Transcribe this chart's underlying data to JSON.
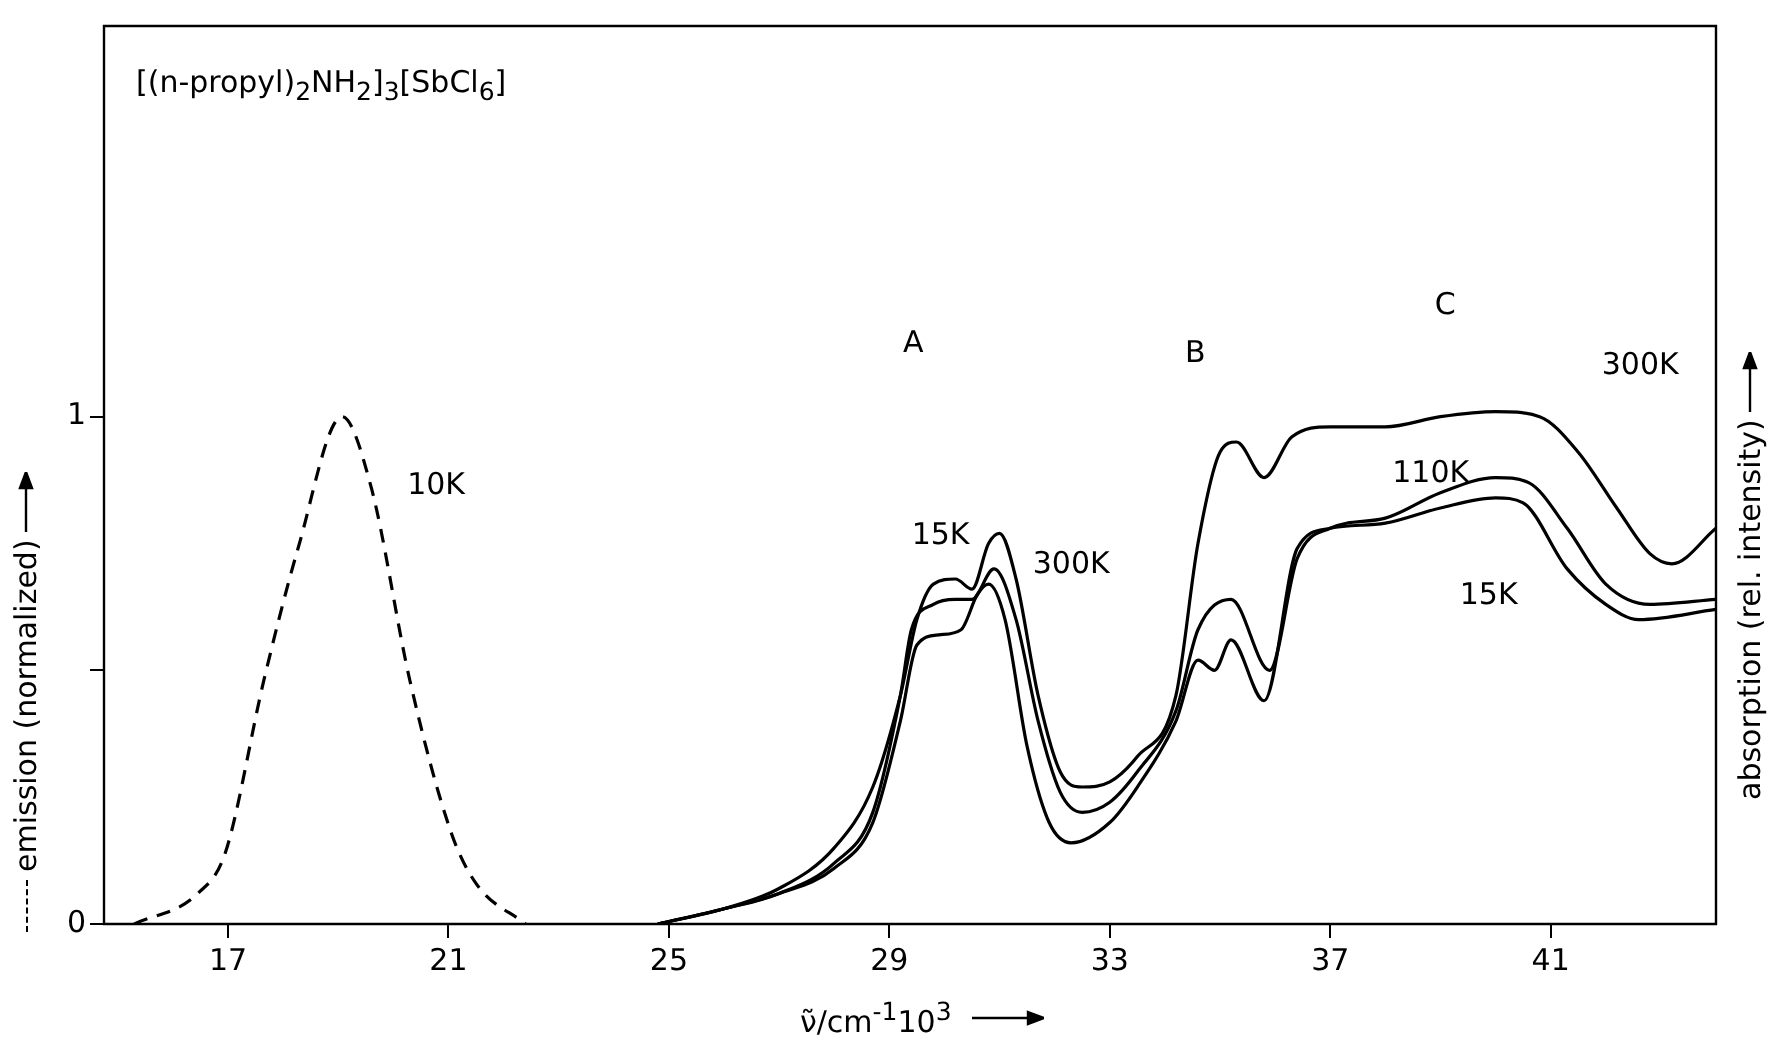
{
  "chart_data": {
    "type": "line",
    "title": "[(n-propyl)$_{2}$NH$_{2}$]$_{3}$[SbCl$_{6}$]",
    "xlabel": "ν̃/cm$^{-1}$10$^{3}$",
    "ylabel": "emission (normalized)",
    "y2label": "absorption (rel. intensity)",
    "xlim": [
      14.75,
      44
    ],
    "xticks": [
      17,
      21,
      25,
      29,
      33,
      37,
      41
    ],
    "ylim": [
      0,
      1.77
    ],
    "yticks": [
      0,
      {
        "value": 0.5,
        "label": null
      },
      1
    ],
    "grid": false,
    "legend": false,
    "marker": "none",
    "series": [
      {
        "color": "#000000",
        "line_style": "dashed",
        "x": [
          15.3,
          16.45,
          16.95,
          17.65,
          18.27,
          19.07,
          19.6,
          20.3,
          21.05,
          21.5,
          22.4
        ],
        "values": [
          0,
          0.06,
          0.14,
          0.48,
          0.74,
          1,
          0.86,
          0.48,
          0.18,
          0.08,
          0
        ]
      },
      {
        "color": "#000000",
        "line_style": "solid",
        "x": [
          24.8,
          26,
          27,
          28,
          28.7,
          29.2,
          29.5,
          29.8,
          30.2,
          30.5,
          30.8,
          31.0,
          31.3,
          31.7,
          32.1,
          32.5,
          33,
          33.5,
          34.2,
          34.6,
          35.0,
          35.3,
          35.8,
          36.3,
          37,
          38,
          39,
          40,
          40.8,
          41.5,
          42.2,
          42.8,
          43.2,
          44
        ],
        "values": [
          0,
          0.03,
          0.07,
          0.15,
          0.27,
          0.45,
          0.6,
          0.67,
          0.68,
          0.66,
          0.75,
          0.77,
          0.68,
          0.45,
          0.3,
          0.27,
          0.28,
          0.33,
          0.45,
          0.75,
          0.93,
          0.95,
          0.88,
          0.96,
          0.98,
          0.98,
          1.0,
          1.01,
          1.0,
          0.93,
          0.82,
          0.73,
          0.71,
          0.78
        ]
      },
      {
        "color": "#000000",
        "line_style": "solid",
        "x": [
          24.8,
          26,
          27,
          28,
          28.7,
          29.2,
          29.4,
          29.8,
          30.2,
          30.5,
          30.9,
          31.3,
          31.7,
          32.1,
          32.5,
          33,
          33.5,
          34.2,
          34.6,
          35.2,
          35.9,
          36.4,
          37,
          38,
          39,
          40,
          40.6,
          41.3,
          42,
          42.8,
          44
        ],
        "values": [
          0,
          0.03,
          0.06,
          0.12,
          0.22,
          0.45,
          0.58,
          0.63,
          0.64,
          0.64,
          0.7,
          0.6,
          0.4,
          0.26,
          0.22,
          0.24,
          0.3,
          0.42,
          0.58,
          0.64,
          0.5,
          0.72,
          0.78,
          0.8,
          0.85,
          0.88,
          0.87,
          0.78,
          0.67,
          0.63,
          0.64
        ]
      },
      {
        "color": "#000000",
        "line_style": "solid",
        "x": [
          24.8,
          26,
          27,
          28,
          28.7,
          29.2,
          29.5,
          29.9,
          30.3,
          30.6,
          30.8,
          31.1,
          31.5,
          31.9,
          32.3,
          33,
          33.5,
          34.2,
          34.6,
          34.9,
          35.2,
          35.8,
          36.4,
          37,
          38,
          39,
          40,
          40.5,
          41.3,
          42,
          42.6,
          44
        ],
        "values": [
          0,
          0.03,
          0.06,
          0.11,
          0.2,
          0.4,
          0.55,
          0.57,
          0.58,
          0.65,
          0.67,
          0.6,
          0.35,
          0.2,
          0.16,
          0.2,
          0.27,
          0.4,
          0.52,
          0.5,
          0.56,
          0.44,
          0.74,
          0.78,
          0.79,
          0.82,
          0.84,
          0.83,
          0.7,
          0.63,
          0.6,
          0.62
        ]
      }
    ],
    "annotations": [
      "10K",
      "A",
      "15K",
      "300K",
      "B",
      "C",
      "110K",
      "15K",
      "300K"
    ]
  }
}
